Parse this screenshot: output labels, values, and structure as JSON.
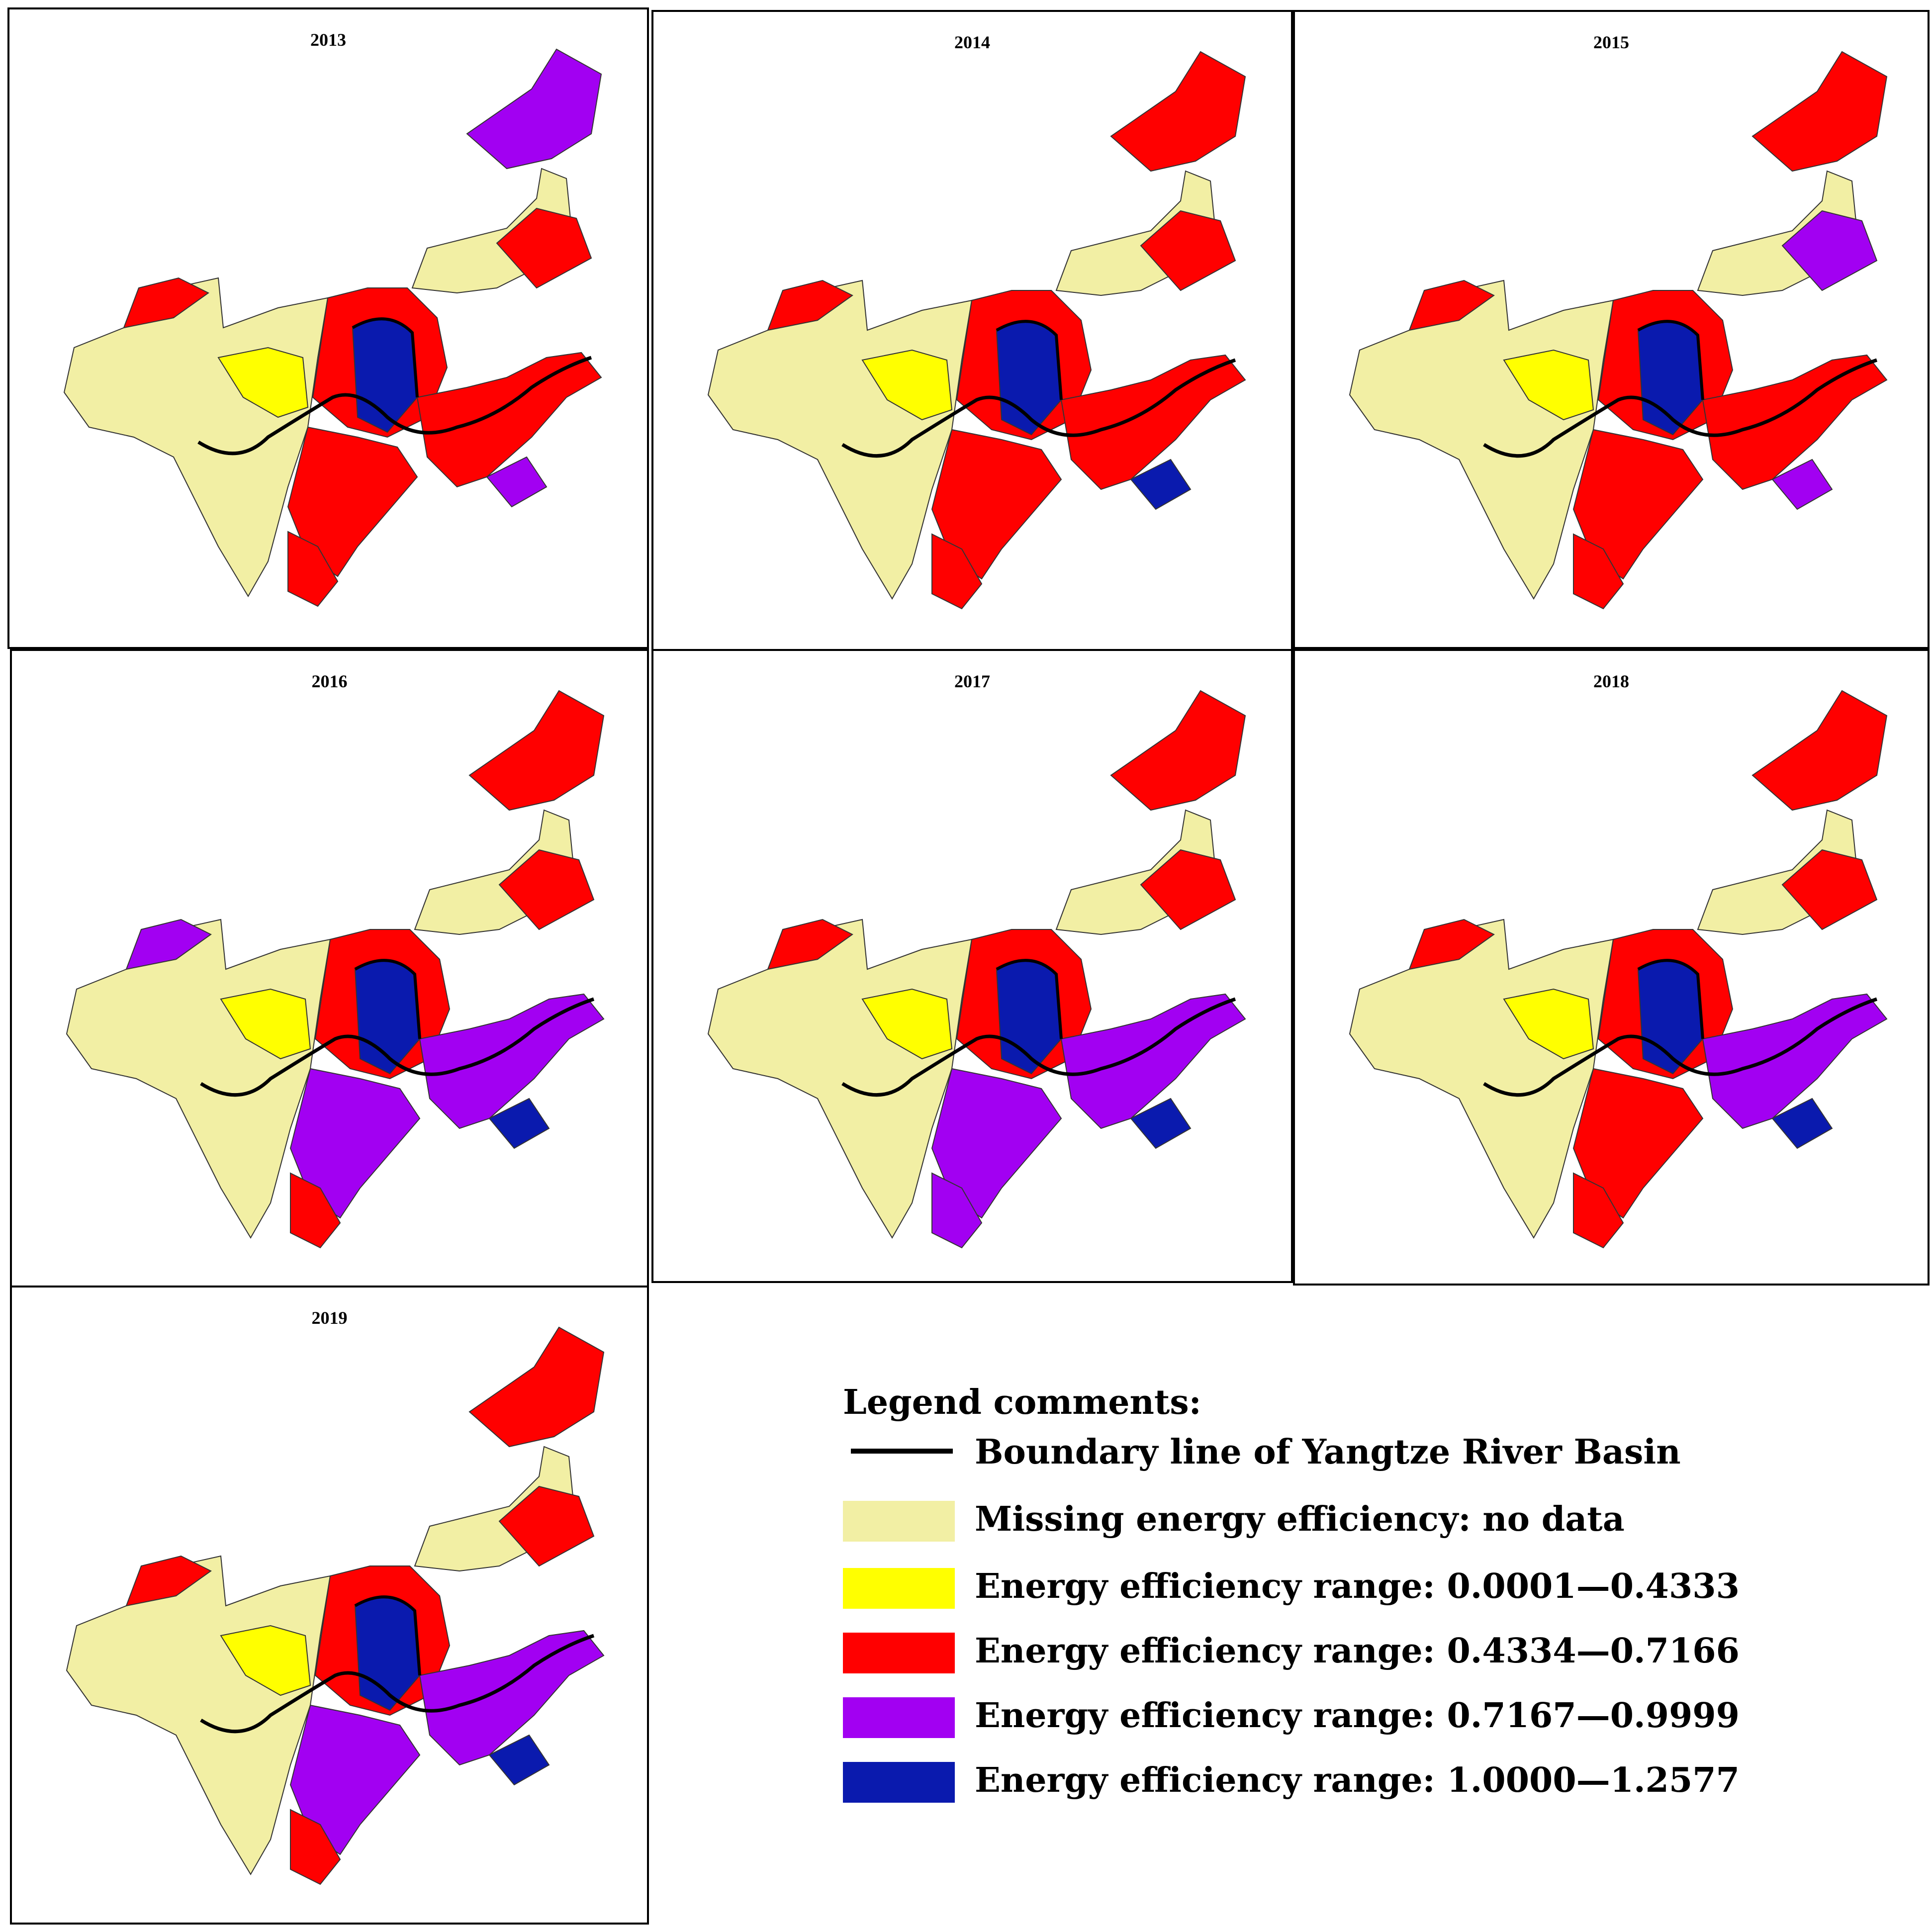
{
  "panels": [
    {
      "year": "2013"
    },
    {
      "year": "2014"
    },
    {
      "year": "2015"
    },
    {
      "year": "2016"
    },
    {
      "year": "2017"
    },
    {
      "year": "2018"
    },
    {
      "year": "2019"
    }
  ],
  "colors": {
    "no_data": "#F2EFA4",
    "range_1": "#FFFF00",
    "range_2": "#FF0000",
    "range_3": "#A200F2",
    "range_4": "#0A1AAE",
    "boundary": "#000000"
  },
  "legend": {
    "title": "Legend comments:",
    "items": [
      {
        "label": "Boundary line of Yangtze River Basin",
        "type": "line"
      },
      {
        "label": "Missing energy efficiency:  no data",
        "color_key": "no_data"
      },
      {
        "label": "Energy efficiency range: 0.0001—0.4333",
        "color_key": "range_1"
      },
      {
        "label": "Energy efficiency range: 0.4334—0.7166",
        "color_key": "range_2"
      },
      {
        "label": "Energy efficiency range: 0.7167—0.9999",
        "color_key": "range_3"
      },
      {
        "label": "Energy efficiency range: 1.0000—1.2577",
        "color_key": "range_4"
      }
    ]
  }
}
